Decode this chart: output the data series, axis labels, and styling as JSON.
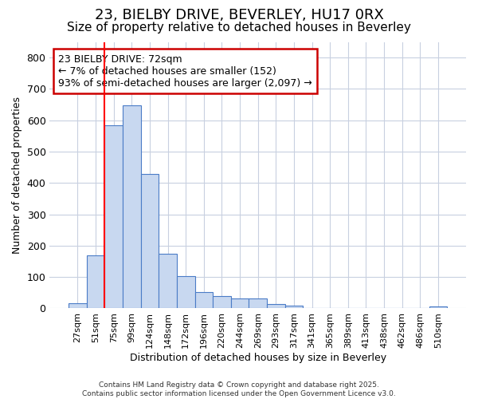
{
  "title_line1": "23, BIELBY DRIVE, BEVERLEY, HU17 0RX",
  "title_line2": "Size of property relative to detached houses in Beverley",
  "xlabel": "Distribution of detached houses by size in Beverley",
  "ylabel": "Number of detached properties",
  "categories": [
    "27sqm",
    "51sqm",
    "75sqm",
    "99sqm",
    "124sqm",
    "148sqm",
    "172sqm",
    "196sqm",
    "220sqm",
    "244sqm",
    "269sqm",
    "293sqm",
    "317sqm",
    "341sqm",
    "365sqm",
    "389sqm",
    "413sqm",
    "438sqm",
    "462sqm",
    "486sqm",
    "510sqm"
  ],
  "values": [
    17,
    168,
    583,
    648,
    430,
    175,
    103,
    52,
    40,
    32,
    32,
    13,
    10,
    0,
    0,
    0,
    0,
    0,
    0,
    0,
    6
  ],
  "bar_color": "#c8d8f0",
  "bar_edge_color": "#4a7cc7",
  "red_line_x": 2.0,
  "annotation_text": "23 BIELBY DRIVE: 72sqm\n← 7% of detached houses are smaller (152)\n93% of semi-detached houses are larger (2,097) →",
  "annotation_box_color": "#ffffff",
  "annotation_box_edge": "#cc0000",
  "ylim": [
    0,
    850
  ],
  "fig_bg": "#ffffff",
  "plot_bg": "#ffffff",
  "grid_color": "#c8d0e0",
  "footer_text": "Contains HM Land Registry data © Crown copyright and database right 2025.\nContains public sector information licensed under the Open Government Licence v3.0.",
  "title_fontsize": 13,
  "subtitle_fontsize": 11,
  "annotation_fontsize": 9
}
